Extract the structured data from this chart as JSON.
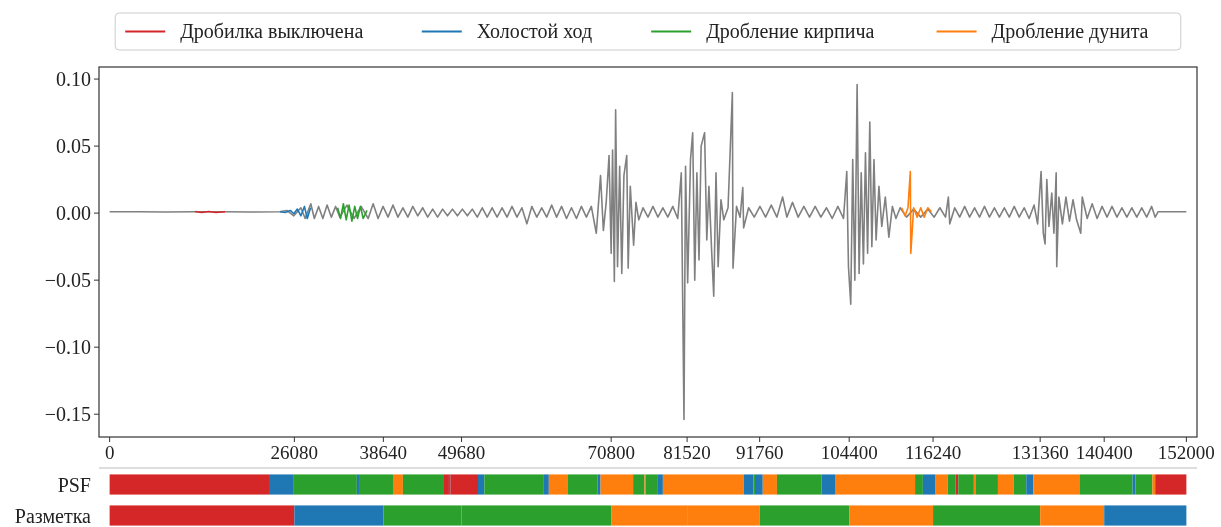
{
  "chart_data": [
    {
      "type": "line",
      "xlim": [
        -1500,
        153500
      ],
      "ylim": [
        -0.167,
        0.109
      ],
      "xticks": [
        0,
        26080,
        38640,
        49680,
        70800,
        81520,
        91760,
        104400,
        116240,
        131360,
        140400,
        152000
      ],
      "yticks": [
        {
          "value": 0.1,
          "label": "0.10"
        },
        {
          "value": 0.05,
          "label": "0.05"
        },
        {
          "value": 0,
          "label": "0.00"
        },
        {
          "value": -0.05,
          "label": "−0.05"
        },
        {
          "value": -0.1,
          "label": "−0.10"
        },
        {
          "value": -0.15,
          "label": "−0.15"
        }
      ],
      "legend": "top",
      "series": [
        {
          "color": "#808080",
          "x": [
            0,
            4000,
            8000,
            12000,
            16000,
            20000,
            24000,
            25000,
            26000,
            27000,
            27600,
            28400,
            28900,
            29500,
            30100,
            30700,
            31300,
            31900,
            32500,
            33500,
            34500,
            35500,
            36500,
            37200,
            37900,
            38600,
            39300,
            40000,
            40700,
            41400,
            42100,
            42800,
            43500,
            44200,
            44900,
            45600,
            46300,
            47000,
            47700,
            48400,
            49100,
            49800,
            50500,
            51200,
            51900,
            52600,
            53300,
            54000,
            54700,
            55400,
            56100,
            56800,
            57500,
            58200,
            58900,
            59600,
            60300,
            61000,
            61700,
            62400,
            63100,
            63800,
            64500,
            65200,
            65900,
            66600,
            67300,
            68000,
            68700,
            69300,
            69700,
            70100,
            70500,
            70800,
            71000,
            71250,
            71430,
            71700,
            72000,
            72300,
            72600,
            73000,
            73200,
            73500,
            73970,
            74300,
            74700,
            75300,
            76000,
            76700,
            77400,
            78100,
            78800,
            79500,
            80200,
            80700,
            81080,
            81300,
            81600,
            82000,
            82310,
            82600,
            82900,
            83200,
            83500,
            83990,
            84300,
            84600,
            85000,
            85280,
            85600,
            85900,
            86300,
            86700,
            87300,
            87910,
            88000,
            88500,
            89000,
            89380,
            89500,
            90200,
            91000,
            91800,
            92600,
            93400,
            94200,
            95000,
            95600,
            96400,
            97200,
            98000,
            98800,
            99600,
            100400,
            101200,
            102000,
            102800,
            103600,
            104060,
            104300,
            104620,
            104900,
            105200,
            105520,
            105800,
            106100,
            106410,
            106700,
            107000,
            107310,
            107600,
            107900,
            108200,
            108600,
            109000,
            109500,
            110000,
            110500,
            111000,
            111600,
            112500,
            113500,
            114500,
            115500,
            116400,
            117200,
            118000,
            118400,
            118600,
            119300,
            120000,
            120700,
            121400,
            122100,
            122800,
            123500,
            124200,
            124900,
            125600,
            126300,
            127000,
            127700,
            128400,
            129100,
            129800,
            130500,
            131000,
            131490,
            131800,
            132050,
            132300,
            132600,
            133000,
            133300,
            133620,
            133700,
            134000,
            134500,
            135000,
            135500,
            136000,
            136500,
            137090,
            137300,
            138000,
            138700,
            139400,
            140100,
            140800,
            141500,
            142200,
            142900,
            143600,
            144300,
            145000,
            145700,
            146400,
            147100,
            147600,
            148000,
            150000,
            152000
          ],
          "values": [
            0.001,
            0.001,
            0.0008,
            0.001,
            0.001,
            0.0008,
            0.001,
            0.002,
            -0.002,
            0.004,
            -0.004,
            0.007,
            -0.004,
            0.005,
            -0.004,
            0.006,
            -0.003,
            0.005,
            -0.003,
            0.006,
            -0.004,
            0.005,
            -0.004,
            0.007,
            -0.004,
            0.005,
            -0.003,
            0.006,
            -0.003,
            0.004,
            -0.003,
            0.005,
            -0.002,
            0.004,
            -0.003,
            0.003,
            -0.003,
            0.003,
            -0.002,
            0.003,
            -0.002,
            0.003,
            -0.002,
            0.003,
            -0.003,
            0.004,
            -0.003,
            0.004,
            -0.003,
            0.004,
            -0.003,
            0.005,
            -0.003,
            0.004,
            -0.008,
            0.005,
            -0.003,
            0.004,
            -0.003,
            0.006,
            -0.003,
            0.005,
            -0.004,
            0.004,
            -0.004,
            0.005,
            -0.003,
            0.005,
            -0.015,
            0.028,
            -0.013,
            0.008,
            0.043,
            -0.03,
            0.047,
            -0.051,
            0.077,
            -0.04,
            0.035,
            -0.045,
            0.028,
            0.043,
            -0.041,
            0.02,
            -0.024,
            0.008,
            -0.005,
            0.004,
            -0.003,
            0.005,
            -0.003,
            0.004,
            -0.003,
            0.005,
            -0.004,
            0.03,
            -0.154,
            0.035,
            -0.052,
            0.04,
            0.06,
            -0.05,
            0.03,
            -0.035,
            0.05,
            0.06,
            -0.02,
            0.02,
            -0.03,
            -0.062,
            0.03,
            -0.04,
            0.01,
            -0.005,
            0.004,
            0.09,
            -0.041,
            0.005,
            -0.003,
            0.019,
            -0.011,
            0.004,
            -0.003,
            0.005,
            -0.003,
            0.006,
            -0.003,
            0.012,
            -0.003,
            0.008,
            -0.003,
            0.005,
            -0.003,
            0.005,
            -0.003,
            0.004,
            -0.004,
            0.005,
            -0.004,
            0.031,
            -0.04,
            -0.068,
            0.04,
            -0.05,
            0.096,
            -0.045,
            0.03,
            -0.038,
            0.045,
            -0.03,
            0.068,
            -0.025,
            0.04,
            -0.02,
            0.02,
            -0.01,
            0.012,
            -0.018,
            0.005,
            -0.004,
            0.004,
            -0.003,
            0.003,
            -0.003,
            0.003,
            -0.003,
            0.004,
            -0.003,
            0.012,
            -0.008,
            0.004,
            -0.003,
            0.005,
            -0.003,
            0.004,
            -0.003,
            0.005,
            -0.003,
            0.004,
            -0.003,
            0.004,
            -0.003,
            0.005,
            -0.003,
            0.004,
            -0.004,
            0.006,
            -0.008,
            0.031,
            -0.015,
            -0.023,
            0.025,
            -0.01,
            0.015,
            -0.015,
            0.03,
            -0.04,
            0.012,
            -0.008,
            0.012,
            -0.006,
            0.01,
            -0.005,
            -0.015,
            0.012,
            -0.004,
            0.007,
            -0.004,
            0.005,
            -0.003,
            0.005,
            -0.003,
            0.004,
            -0.003,
            0.004,
            -0.003,
            0.004,
            -0.003,
            0.005,
            -0.003,
            0.001,
            0.001,
            0.001
          ]
        },
        {
          "name": "Дробилка выключена",
          "color": "#d62728",
          "x": [
            12050,
            13000,
            14000,
            15000,
            16300
          ],
          "values": [
            0.0012,
            0.0005,
            0.0012,
            0.0005,
            0.001
          ]
        },
        {
          "name": "Холостой ход",
          "color": "#1f77b4",
          "x": [
            24050,
            24800,
            25500,
            26000,
            26500,
            27000,
            27500,
            27900,
            28370
          ],
          "values": [
            0.001,
            0.0005,
            0.002,
            -0.0005,
            0.003,
            -0.002,
            0.005,
            -0.004,
            0.004
          ]
        },
        {
          "name": "Дробление кирпича",
          "color": "#2ca02c",
          "x": [
            32180,
            32600,
            33000,
            33400,
            33800,
            34200,
            34600,
            35000,
            35400,
            35800,
            36330
          ],
          "values": [
            0.004,
            -0.004,
            0.007,
            -0.005,
            0.006,
            -0.006,
            0.005,
            -0.004,
            0.005,
            -0.004,
            0.002
          ]
        },
        {
          "name": "Дробление дунита",
          "color": "#ff7f0e",
          "x": [
            111800,
            112300,
            112700,
            113030,
            113100,
            113500,
            114000,
            114500,
            115000,
            115500,
            116000
          ],
          "values": [
            0.004,
            -0.002,
            0.004,
            0.031,
            -0.03,
            0.004,
            -0.003,
            0.004,
            -0.003,
            0.004,
            0.001
          ]
        }
      ]
    },
    {
      "type": "bar",
      "orientation": "horizontal",
      "stacked": true,
      "categories": [
        "PSF",
        "Разметка"
      ],
      "xlim": [
        -1500,
        153500
      ],
      "tick_labels": "y",
      "series": [
        {
          "color": "#d62728",
          "values": [
            22500,
            null
          ]
        },
        {
          "color": "#1f77b4",
          "values": [
            3500,
            null
          ]
        },
        {
          "color": "#2ca02c",
          "values": [
            8900,
            null
          ]
        },
        {
          "color": "#1f77b4",
          "values": [
            300,
            null
          ]
        },
        {
          "color": "#2ca02c",
          "values": [
            4800,
            null
          ]
        },
        {
          "color": "#ff7f0e",
          "values": [
            1400,
            null
          ]
        },
        {
          "color": "#2ca02c",
          "values": [
            5800,
            null
          ]
        },
        {
          "color": "#d62728",
          "values": [
            700,
            null
          ]
        },
        {
          "color": "#1f77b4",
          "values": [
            200,
            null
          ]
        },
        {
          "color": "#d62728",
          "values": [
            3900,
            null
          ]
        },
        {
          "color": "#1f77b4",
          "values": [
            900,
            null
          ]
        },
        {
          "color": "#2ca02c",
          "values": [
            8400,
            null
          ]
        },
        {
          "color": "#1f77b4",
          "values": [
            700,
            null
          ]
        },
        {
          "color": "#ff7f0e",
          "values": [
            2700,
            null
          ]
        },
        {
          "color": "#2ca02c",
          "values": [
            4200,
            null
          ]
        },
        {
          "color": "#1f77b4",
          "values": [
            400,
            null
          ]
        },
        {
          "color": "#ff7f0e",
          "values": [
            4600,
            null
          ]
        },
        {
          "color": "#2ca02c",
          "values": [
            1600,
            null
          ]
        },
        {
          "color": "#ff7f0e",
          "values": [
            200,
            null
          ]
        },
        {
          "color": "#2ca02c",
          "values": [
            1600,
            null
          ]
        },
        {
          "color": "#1f77b4",
          "values": [
            800,
            null
          ]
        },
        {
          "color": "#ff7f0e",
          "values": [
            11400,
            null
          ]
        },
        {
          "color": "#1f77b4",
          "values": [
            1400,
            null
          ]
        },
        {
          "color": "#2ca02c",
          "values": [
            200,
            null
          ]
        },
        {
          "color": "#1f77b4",
          "values": [
            1100,
            null
          ]
        },
        {
          "color": "#ff7f0e",
          "values": [
            2000,
            null
          ]
        },
        {
          "color": "#2ca02c",
          "values": [
            6300,
            null
          ]
        },
        {
          "color": "#1f77b4",
          "values": [
            1900,
            null
          ]
        },
        {
          "color": "#ff7f0e",
          "values": [
            11300,
            null
          ]
        },
        {
          "color": "#2ca02c",
          "values": [
            1100,
            null
          ]
        },
        {
          "color": "#1f77b4",
          "values": [
            1800,
            null
          ]
        },
        {
          "color": "#ff7f0e",
          "values": [
            1700,
            null
          ]
        },
        {
          "color": "#2ca02c",
          "values": [
            1100,
            null
          ]
        },
        {
          "color": "#d62728",
          "values": [
            400,
            null
          ]
        },
        {
          "color": "#2ca02c",
          "values": [
            2200,
            null
          ]
        },
        {
          "color": "#ff7f0e",
          "values": [
            300,
            null
          ]
        },
        {
          "color": "#2ca02c",
          "values": [
            3100,
            null
          ]
        },
        {
          "color": "#ff7f0e",
          "values": [
            2200,
            null
          ]
        },
        {
          "color": "#2ca02c",
          "values": [
            1800,
            null
          ]
        },
        {
          "color": "#1f77b4",
          "values": [
            1000,
            null
          ]
        },
        {
          "color": "#ff7f0e",
          "values": [
            6500,
            null
          ]
        },
        {
          "color": "#2ca02c",
          "values": [
            7500,
            null
          ]
        },
        {
          "color": "#1f77b4",
          "values": [
            400,
            null
          ]
        },
        {
          "color": "#2ca02c",
          "values": [
            2400,
            null
          ]
        },
        {
          "color": "#ff7f0e",
          "values": [
            400,
            null
          ]
        },
        {
          "color": "#d62728",
          "values": [
            4400,
            null
          ]
        },
        {
          "color": "#d62728",
          "values": [
            null,
            26080
          ]
        },
        {
          "color": "#1f77b4",
          "values": [
            null,
            12560
          ]
        },
        {
          "color": "#2ca02c",
          "values": [
            null,
            11040
          ]
        },
        {
          "color": "#2ca02c",
          "values": [
            null,
            21120
          ]
        },
        {
          "color": "#ff7f0e",
          "values": [
            null,
            10720
          ]
        },
        {
          "color": "#ff7f0e",
          "values": [
            null,
            10240
          ]
        },
        {
          "color": "#2ca02c",
          "values": [
            null,
            12640
          ]
        },
        {
          "color": "#ff7f0e",
          "values": [
            null,
            11840
          ]
        },
        {
          "color": "#2ca02c",
          "values": [
            null,
            15120
          ]
        },
        {
          "color": "#ff7f0e",
          "values": [
            null,
            9040
          ]
        },
        {
          "color": "#1f77b4",
          "values": [
            null,
            11600
          ]
        }
      ]
    }
  ]
}
